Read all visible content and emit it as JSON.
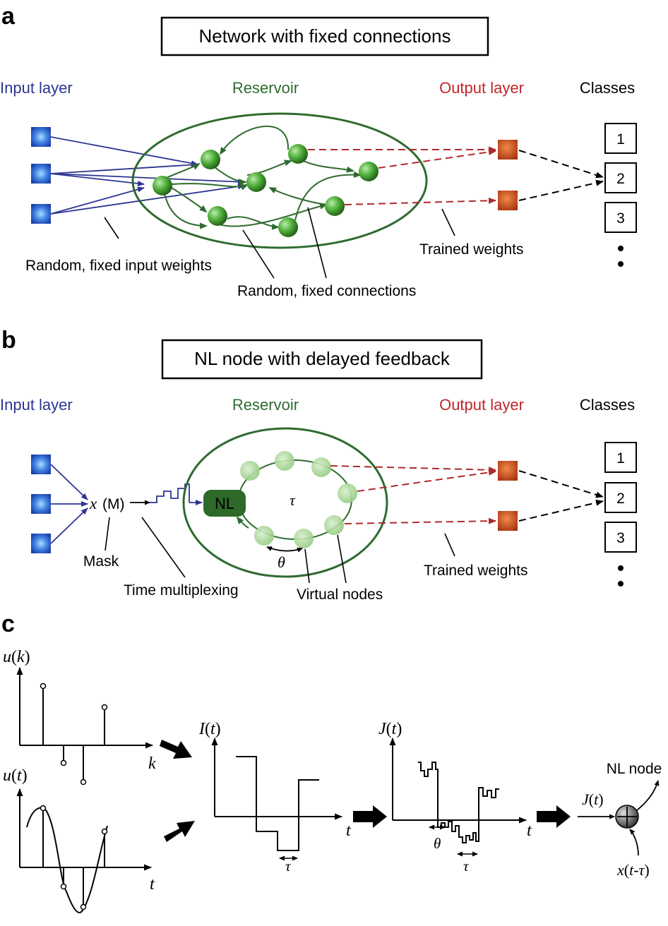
{
  "panels": {
    "a": {
      "letter": "a",
      "title": "Network with fixed connections",
      "headers": {
        "input": "Input layer",
        "reservoir": "Reservoir",
        "output": "Output layer",
        "classes": "Classes"
      },
      "class_labels": [
        "1",
        "2",
        "3"
      ],
      "annotations": {
        "trained_weights": "Trained weights",
        "input_weights": "Random, fixed input weights",
        "connections": "Random, fixed connections"
      }
    },
    "b": {
      "letter": "b",
      "title": "NL node with delayed feedback",
      "headers": {
        "input": "Input layer",
        "reservoir": "Reservoir",
        "output": "Output layer",
        "classes": "Classes"
      },
      "class_labels": [
        "1",
        "2",
        "3"
      ],
      "x_symbol": "x",
      "mask_symbol": "(M)",
      "nl_label": "NL",
      "tau": "τ",
      "theta": "θ",
      "annotations": {
        "mask": "Mask",
        "time_multiplexing": "Time multiplexing",
        "virtual_nodes": "Virtual nodes",
        "trained_weights": "Trained weights"
      }
    },
    "c": {
      "letter": "c",
      "uk_label": {
        "fn": "u",
        "arg": "k"
      },
      "uk_axis": "k",
      "ut_label": {
        "fn": "u",
        "arg": "t"
      },
      "ut_axis": "t",
      "It_label": {
        "fn": "I",
        "arg": "t"
      },
      "It_axis": "t",
      "It_tau": "τ",
      "Jt_label": {
        "fn": "J",
        "arg": "t"
      },
      "Jt_axis": "t",
      "Jt_theta": "θ",
      "Jt_tau": "τ",
      "nl_node": "NL node",
      "Jt_in": {
        "fn": "J",
        "arg": "t"
      },
      "feedback": {
        "fn": "x",
        "arg": "t-τ"
      }
    }
  },
  "colors": {
    "input_node": "#2a5fc8",
    "input_arrow": "#2d3592",
    "reservoir": "#2f6b2f",
    "reservoir_node": "#3a9a2a",
    "output_node": "#c0451a",
    "output_arrow": "#b02a2a",
    "input_text": "#2d3592",
    "reservoir_text": "#2f6b2f",
    "output_text": "#c0262a",
    "virtual_node": "#9ccc88"
  }
}
